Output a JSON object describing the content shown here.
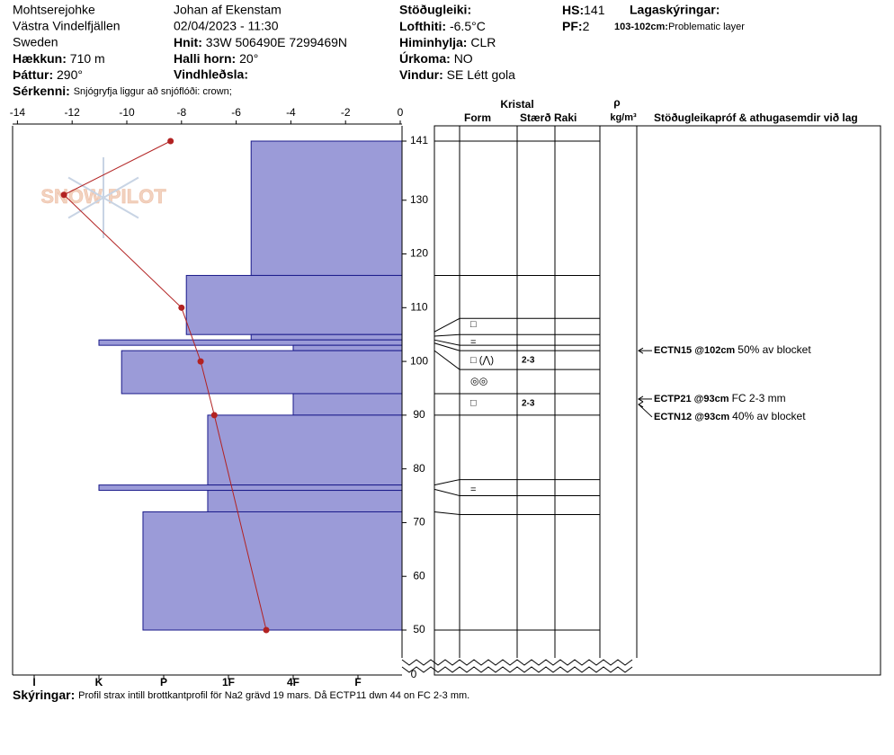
{
  "header": {
    "location": "Mohtserejohke",
    "region": "Västra Vindelfjällen",
    "country": "Sweden",
    "elevation": {
      "label": "Hækkun:",
      "value": "710 m"
    },
    "aspect": {
      "label": "Þáttur:",
      "value": "290°"
    },
    "features": {
      "label": "Sérkenni:",
      "value": "Snjógryfja liggur að snjóflóði: crown;"
    },
    "observer": "Johan af Ekenstam",
    "datetime": "02/04/2023 - 11:30",
    "coords": {
      "label": "Hnit:",
      "value": "33W 506490E 7299469N"
    },
    "slope": {
      "label": "Halli horn:",
      "value": "20°"
    },
    "wind_loading": {
      "label": "Vindhleðsla:"
    },
    "stability": {
      "label": "Stöðugleiki:"
    },
    "air_temp": {
      "label": "Lofthiti:",
      "value": "-6.5°C"
    },
    "sky": {
      "label": "Himinhylja:",
      "value": "CLR"
    },
    "precip": {
      "label": "Úrkoma:",
      "value": "NO"
    },
    "wind": {
      "label": "Vindur:",
      "value": "SE Létt gola"
    },
    "hs": {
      "label": "HS:",
      "value": 141
    },
    "pf": {
      "label": "PF:",
      "value": 2
    },
    "layer_notes": {
      "label": "Lagaskýringar:",
      "range": "103-102cm:",
      "text": "Problematic layer"
    }
  },
  "chart_data": {
    "type": "snow-profile",
    "watermark": "SNOW PILOT",
    "xlim": [
      -14,
      0
    ],
    "xticks": [
      -14,
      -12,
      -10,
      -8,
      -6,
      -4,
      -2,
      0
    ],
    "ylim": [
      50,
      141
    ],
    "yticks": [
      50,
      60,
      70,
      80,
      90,
      100,
      110,
      120,
      130,
      141
    ],
    "ybottom": 0,
    "hardness_ticks": [
      {
        "value": 6,
        "label": "I"
      },
      {
        "value": 5,
        "label": "K"
      },
      {
        "value": 4,
        "label": "P"
      },
      {
        "value": 3,
        "label": "1F"
      },
      {
        "value": 2,
        "label": "4F"
      },
      {
        "value": 1,
        "label": "F"
      }
    ],
    "temperature": {
      "color": "#b22222",
      "heights": [
        141,
        131,
        110,
        100,
        90,
        50
      ],
      "values": [
        -8.4,
        -12.3,
        -8.0,
        -7.3,
        -6.8,
        -4.9
      ]
    },
    "hardness_color": "#9b9bd8",
    "layers": [
      {
        "top": 141,
        "bottom": 116,
        "hardness": 2.65
      },
      {
        "top": 116,
        "bottom": 105,
        "hardness": 3.65
      },
      {
        "top": 105,
        "bottom": 104,
        "hardness": 2.65
      },
      {
        "top": 104,
        "bottom": 103,
        "hardness": 5
      },
      {
        "top": 103,
        "bottom": 102,
        "hardness": 2
      },
      {
        "top": 102,
        "bottom": 94,
        "hardness": 4.65
      },
      {
        "top": 94,
        "bottom": 90,
        "hardness": 2
      },
      {
        "top": 90,
        "bottom": 77,
        "hardness": 3.32
      },
      {
        "top": 77,
        "bottom": 76,
        "hardness": 5
      },
      {
        "top": 76,
        "bottom": 72,
        "hardness": 3.32
      },
      {
        "top": 72,
        "bottom": 50,
        "hardness": 4.32
      }
    ],
    "columns": {
      "crystal": "Kristal",
      "form": "Form",
      "size": "Stærð",
      "moisture": "Raki",
      "density": "ρ",
      "density_unit": "kg/m³",
      "tests": "Stöðugleikapróf & athugasemdir við lag"
    },
    "boundaries": [
      {
        "h": 141,
        "from": 141
      },
      {
        "h": 116,
        "from": 116
      },
      {
        "h": 108,
        "from": 105.5
      },
      {
        "h": 105,
        "from": 104.7
      },
      {
        "h": 103,
        "from": 104
      },
      {
        "h": 102,
        "from": 103.4
      },
      {
        "h": 98.5,
        "from": 102
      },
      {
        "h": 94,
        "from": 94
      },
      {
        "h": 90,
        "from": 90
      },
      {
        "h": 78,
        "from": 77
      },
      {
        "h": 75,
        "from": 76.2
      },
      {
        "h": 71.5,
        "from": 72
      },
      {
        "h": 50,
        "from": 50
      }
    ],
    "grains": [
      {
        "h": 106.9,
        "form": "□"
      },
      {
        "h": 103.5,
        "form": "="
      },
      {
        "h": 100.2,
        "form": "□ (⋀)",
        "size": "2-3"
      },
      {
        "h": 96.2,
        "form": "◎◎"
      },
      {
        "h": 92.2,
        "form": "□",
        "size": "2-3"
      },
      {
        "h": 76.1,
        "form": "="
      }
    ],
    "tests": [
      {
        "h": 102,
        "code": "ECTN15 @102cm",
        "note": "50% av blocket"
      },
      {
        "h": 93,
        "code": "ECTP21 @93cm",
        "note": "FC 2-3 mm"
      },
      {
        "h": 93,
        "code": "ECTN12 @93cm",
        "note": "40% av blocket"
      }
    ],
    "legend": {
      "label": "Skýringar:",
      "text": "Profil strax intill brottkantprofil för Na2 grävd 19 mars. Då ECTP11 dwn 44 on FC 2-3 mm."
    }
  }
}
